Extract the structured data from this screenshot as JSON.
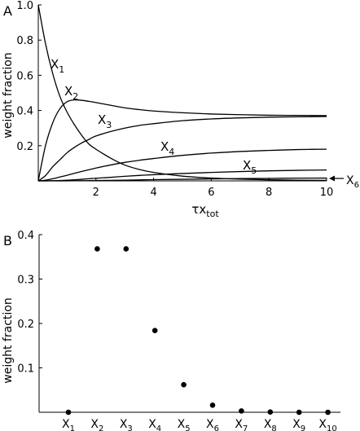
{
  "chart_data": [
    {
      "panel_label": "A",
      "type": "line",
      "xlabel": "τx",
      "xlabel_sub": "tot",
      "ylabel": "weight fraction",
      "xlim": [
        0,
        10
      ],
      "ylim": [
        0,
        1.0
      ],
      "xticks": [
        2,
        4,
        6,
        8,
        10
      ],
      "xtick_labels": [
        "2",
        "4",
        "6",
        "8",
        "10"
      ],
      "yticks": [
        0.2,
        0.4,
        0.6,
        0.8,
        1.0
      ],
      "ytick_labels": [
        "0.2",
        "0.4",
        "0.6",
        "0.8",
        "1.0"
      ],
      "line_color": "#000000",
      "x": [
        0,
        0.25,
        0.5,
        0.75,
        1,
        1.25,
        1.5,
        1.75,
        2,
        2.5,
        3,
        3.5,
        4,
        5,
        6,
        7,
        8,
        9,
        10
      ],
      "series": [
        {
          "name": "X",
          "sub": "1",
          "values": [
            1.0,
            0.78,
            0.61,
            0.48,
            0.39,
            0.32,
            0.26,
            0.21,
            0.18,
            0.13,
            0.09,
            0.065,
            0.048,
            0.027,
            0.016,
            0.01,
            0.006,
            0.004,
            0.003
          ]
        },
        {
          "name": "X",
          "sub": "2",
          "values": [
            0.0,
            0.2,
            0.33,
            0.41,
            0.45,
            0.46,
            0.458,
            0.452,
            0.445,
            0.43,
            0.415,
            0.405,
            0.397,
            0.387,
            0.38,
            0.376,
            0.373,
            0.372,
            0.371
          ]
        },
        {
          "name": "X",
          "sub": "3",
          "values": [
            0.0,
            0.03,
            0.08,
            0.12,
            0.16,
            0.19,
            0.215,
            0.235,
            0.255,
            0.28,
            0.3,
            0.315,
            0.325,
            0.342,
            0.352,
            0.358,
            0.362,
            0.364,
            0.366
          ]
        },
        {
          "name": "X",
          "sub": "4",
          "values": [
            0.0,
            0.004,
            0.012,
            0.022,
            0.032,
            0.043,
            0.053,
            0.063,
            0.073,
            0.09,
            0.105,
            0.117,
            0.127,
            0.145,
            0.158,
            0.167,
            0.173,
            0.178,
            0.18
          ]
        },
        {
          "name": "X",
          "sub": "5",
          "values": [
            0.0,
            0.0003,
            0.001,
            0.002,
            0.004,
            0.006,
            0.009,
            0.012,
            0.015,
            0.02,
            0.026,
            0.031,
            0.035,
            0.042,
            0.048,
            0.053,
            0.057,
            0.06,
            0.062
          ]
        },
        {
          "name": "X",
          "sub": "6",
          "values": [
            0.0,
            0.0,
            0.0001,
            0.0002,
            0.0004,
            0.0007,
            0.001,
            0.0015,
            0.002,
            0.003,
            0.004,
            0.0055,
            0.007,
            0.009,
            0.011,
            0.013,
            0.014,
            0.0155,
            0.016
          ]
        }
      ]
    },
    {
      "panel_label": "B",
      "type": "scatter",
      "ylabel": "weight fraction",
      "ylim": [
        0,
        0.4
      ],
      "yticks": [
        0.1,
        0.2,
        0.3,
        0.4
      ],
      "ytick_labels": [
        "0.1",
        "0.2",
        "0.3",
        "0.4"
      ],
      "categories": [
        {
          "name": "X",
          "sub": "1"
        },
        {
          "name": "X",
          "sub": "2"
        },
        {
          "name": "X",
          "sub": "3"
        },
        {
          "name": "X",
          "sub": "4"
        },
        {
          "name": "X",
          "sub": "5"
        },
        {
          "name": "X",
          "sub": "6"
        },
        {
          "name": "X",
          "sub": "7"
        },
        {
          "name": "X",
          "sub": "8"
        },
        {
          "name": "X",
          "sub": "9"
        },
        {
          "name": "X",
          "sub": "10"
        }
      ],
      "values": [
        0.0,
        0.368,
        0.368,
        0.184,
        0.062,
        0.016,
        0.003,
        0.0005,
        0.0,
        0.0
      ],
      "marker_color": "#000000"
    }
  ]
}
